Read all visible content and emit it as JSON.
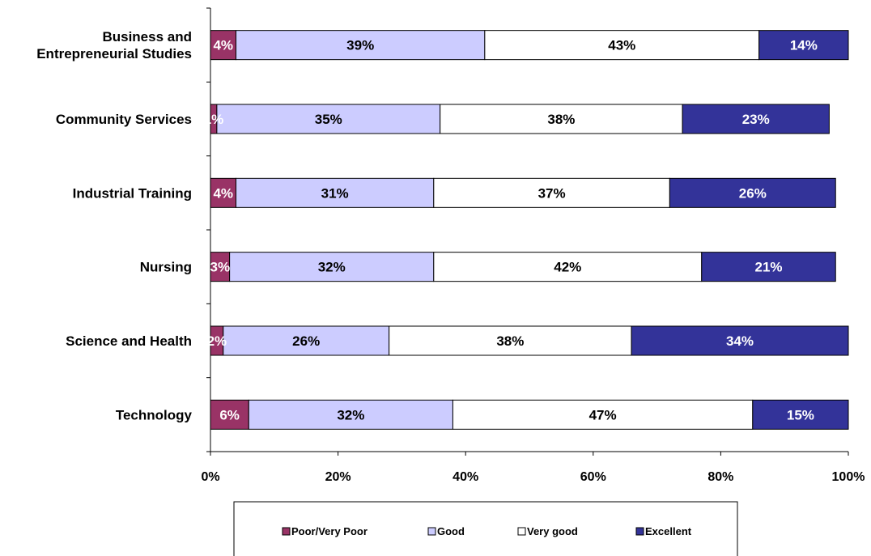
{
  "chart_data": {
    "type": "bar",
    "orientation": "horizontal",
    "stacked": true,
    "categories": [
      "Business and Entrepreneurial Studies",
      "Community Services",
      "Industrial Training",
      "Nursing",
      "Science and Health",
      "Technology"
    ],
    "category_lines": [
      [
        "Business and",
        "Entrepreneurial Studies"
      ],
      [
        "Community Services"
      ],
      [
        "Industrial Training"
      ],
      [
        "Nursing"
      ],
      [
        "Science and Health"
      ],
      [
        "Technology"
      ]
    ],
    "series": [
      {
        "name": "Poor/Very Poor",
        "color": "#993366",
        "label_color": "#ffffff",
        "values": [
          4,
          1,
          4,
          3,
          2,
          6
        ],
        "labels": [
          "4%",
          "1%",
          "4%",
          "3%",
          "2%",
          "6%"
        ]
      },
      {
        "name": "Good",
        "color": "#ccccff",
        "label_color": "#000000",
        "values": [
          39,
          35,
          31,
          32,
          26,
          32
        ],
        "labels": [
          "39%",
          "35%",
          "31%",
          "32%",
          "26%",
          "32%"
        ]
      },
      {
        "name": "Very good",
        "color": "#ffffff",
        "label_color": "#000000",
        "values": [
          43,
          38,
          37,
          42,
          38,
          47
        ],
        "labels": [
          "43%",
          "38%",
          "37%",
          "42%",
          "38%",
          "47%"
        ]
      },
      {
        "name": "Excellent",
        "color": "#333399",
        "label_color": "#ffffff",
        "values": [
          14,
          23,
          26,
          21,
          34,
          15
        ],
        "labels": [
          "14%",
          "23%",
          "26%",
          "21%",
          "34%",
          "15%"
        ]
      }
    ],
    "xlim": [
      0,
      100
    ],
    "xticks": [
      "0%",
      "20%",
      "40%",
      "60%",
      "80%",
      "100%"
    ],
    "grid": false,
    "legend_position": "bottom"
  }
}
